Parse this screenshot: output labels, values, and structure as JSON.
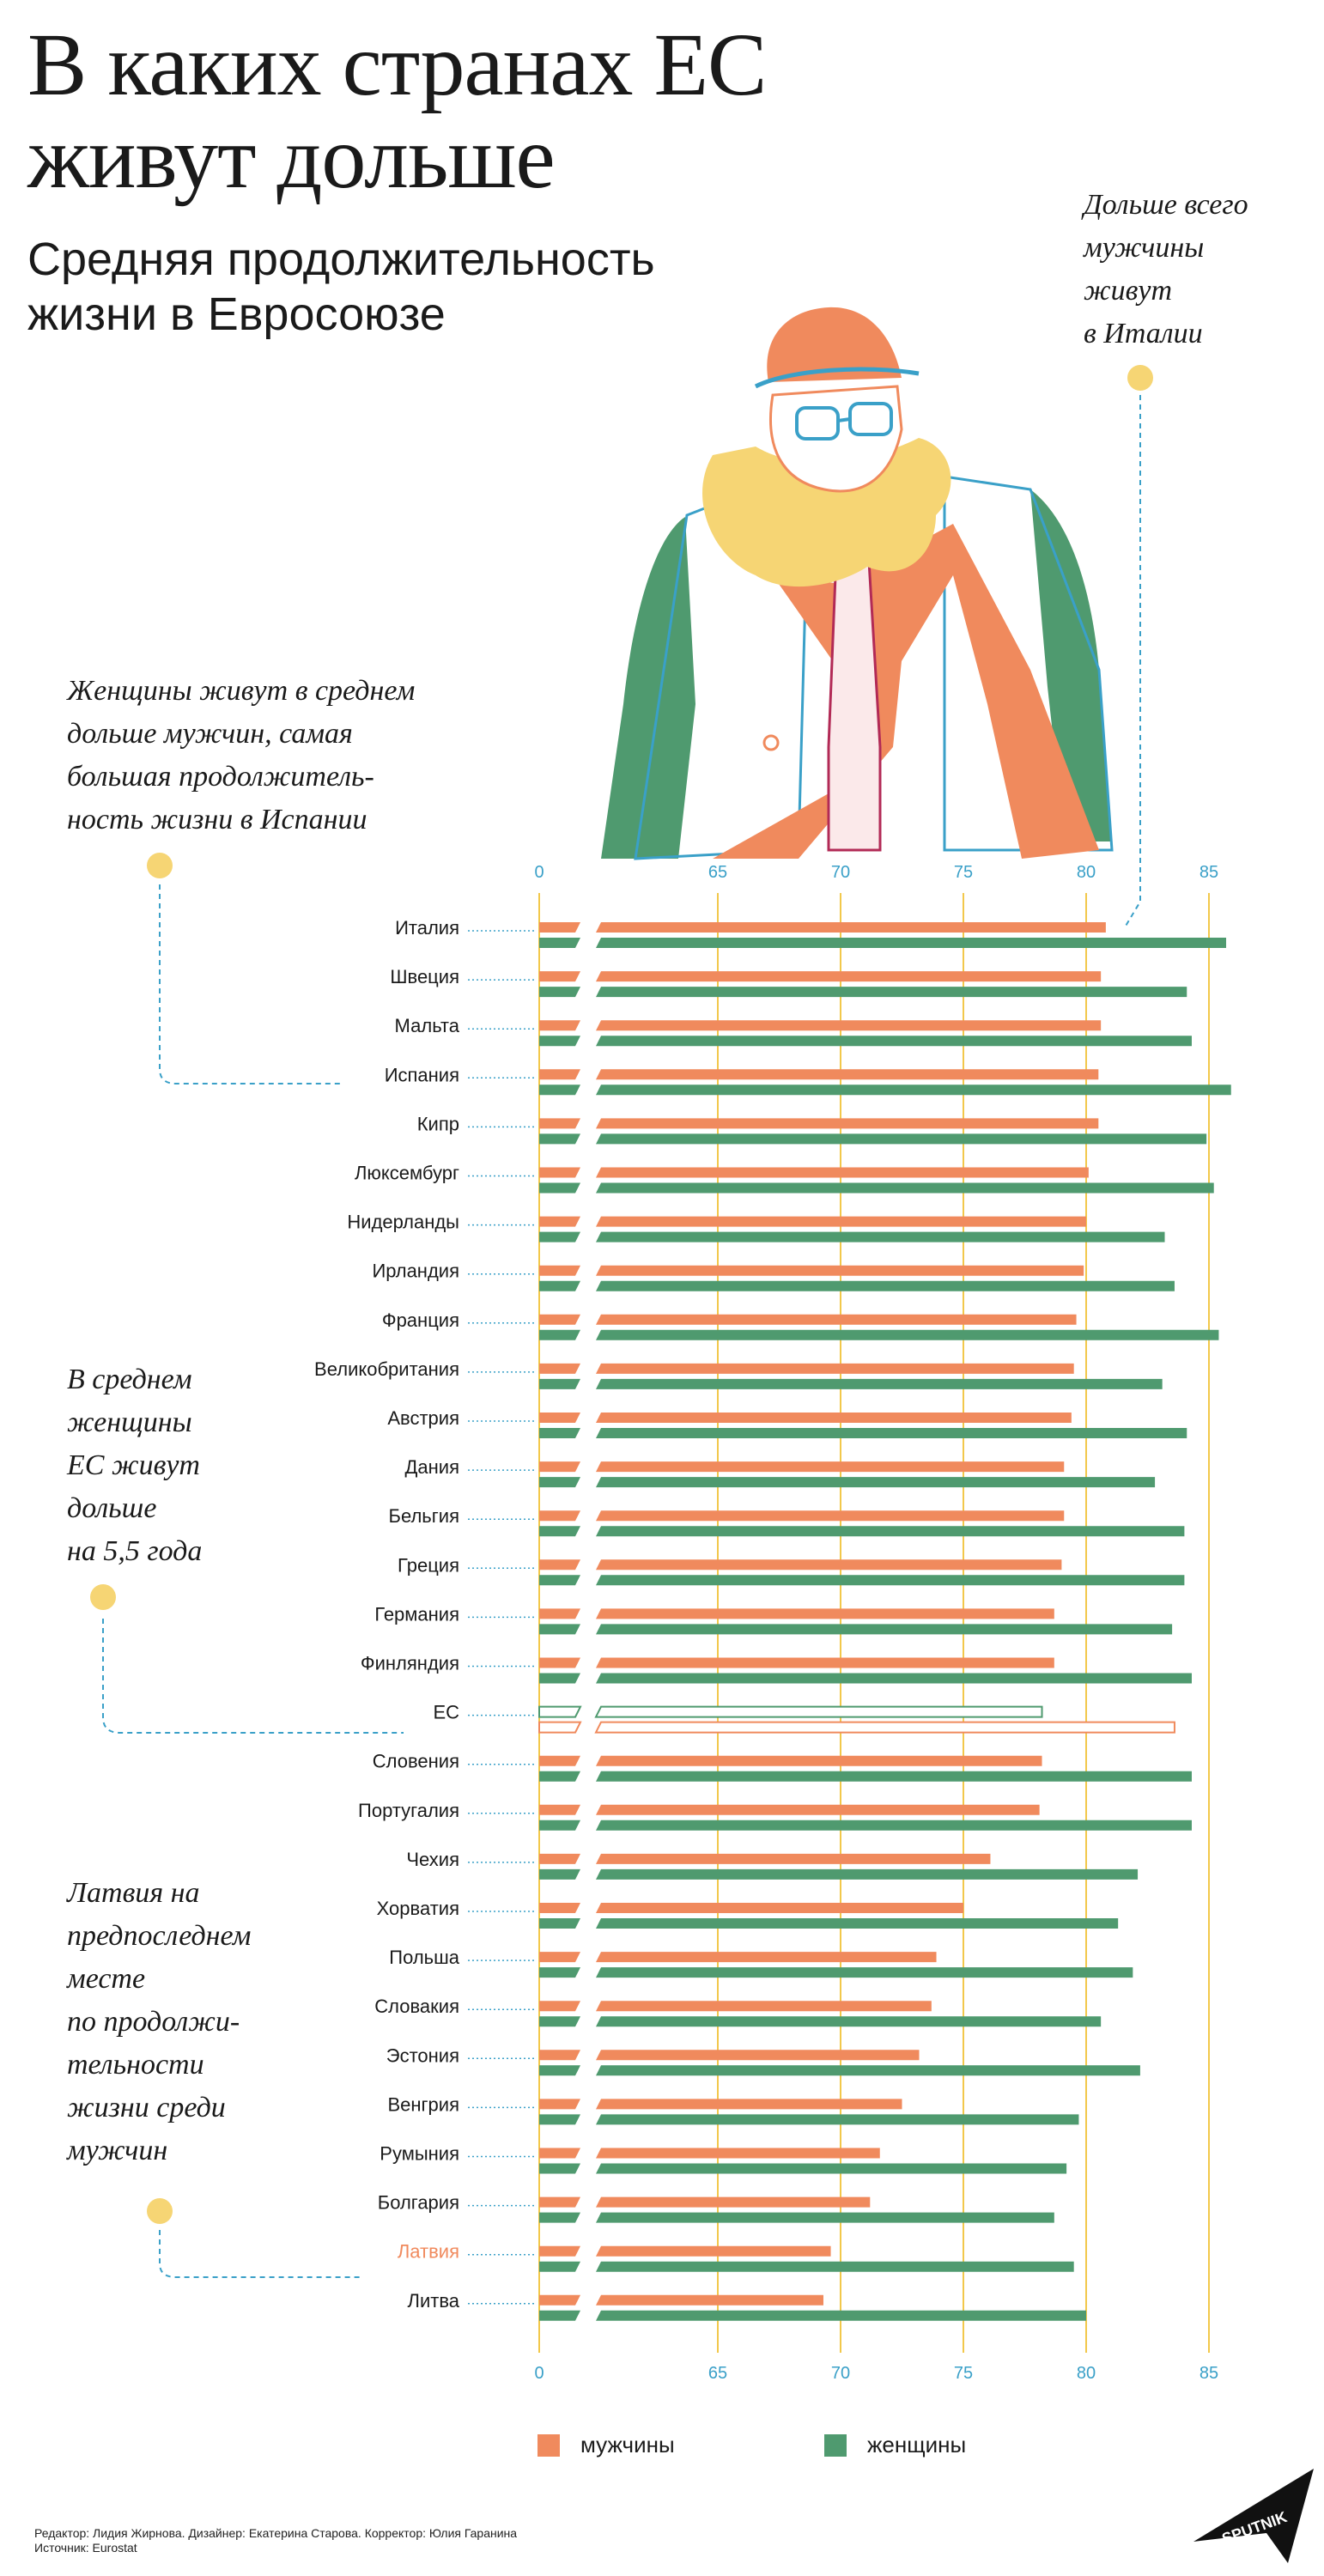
{
  "header": {
    "title_line1": "В каких странах ЕС",
    "title_line2": "живут дольше",
    "subtitle_line1": "Средняя продолжительность",
    "subtitle_line2": "жизни в Евросоюзе"
  },
  "notes": {
    "italy": [
      "Дольше всего",
      "мужчины",
      "живут",
      "в Италии"
    ],
    "spain": [
      "Женщины живут в среднем",
      "дольше мужчин, самая",
      "большая продолжитель-",
      "ность жизни в Испании"
    ],
    "eu": [
      "В среднем",
      "женщины",
      "ЕС живут",
      "дольше",
      "на 5,5 года"
    ],
    "latvia": [
      "Латвия на",
      "предпоследнем",
      "месте",
      "по продолжи-",
      "тельности",
      "жизни среди",
      "мужчин"
    ]
  },
  "legend": {
    "men": "мужчины",
    "women": "женщины"
  },
  "credits": {
    "line1": "Редактор: Лидия Жирнова. Дизайнер: Екатерина Старова. Корректор: Юлия Гаранина",
    "line2": "Источник: Eurostat"
  },
  "logo": {
    "text": "SPUTNIK"
  },
  "colors": {
    "men": "#f08a5d",
    "women": "#4f9a6f",
    "axis": "#3aa0c8",
    "grid": "#f2c84b",
    "highlight": "#f08a5d",
    "dot": "#f6d574"
  },
  "chart_data": {
    "type": "bar",
    "orientation": "horizontal",
    "axis_ticks": [
      "0",
      "65",
      "70",
      "75",
      "80",
      "85"
    ],
    "axis_break": [
      0,
      60
    ],
    "xlim": [
      60,
      87
    ],
    "categories": [
      "Италия",
      "Швеция",
      "Мальта",
      "Испания",
      "Кипр",
      "Люксембург",
      "Нидерланды",
      "Ирландия",
      "Франция",
      "Великобритания",
      "Австрия",
      "Дания",
      "Бельгия",
      "Греция",
      "Германия",
      "Финляндия",
      "ЕС",
      "Словения",
      "Португалия",
      "Чехия",
      "Хорватия",
      "Польша",
      "Словакия",
      "Эстония",
      "Венгрия",
      "Румыния",
      "Болгария",
      "Латвия",
      "Литва"
    ],
    "series": [
      {
        "name": "мужчины",
        "values": [
          80.8,
          80.6,
          80.6,
          80.5,
          80.5,
          80.1,
          80.0,
          79.9,
          79.6,
          79.5,
          79.4,
          79.1,
          79.1,
          79.0,
          78.7,
          78.7,
          78.2,
          78.2,
          78.1,
          76.1,
          75.0,
          73.9,
          73.7,
          73.2,
          72.5,
          71.6,
          71.2,
          69.6,
          69.3
        ]
      },
      {
        "name": "женщины",
        "values": [
          85.7,
          84.1,
          84.3,
          85.9,
          84.9,
          85.2,
          83.2,
          83.6,
          85.4,
          83.1,
          84.1,
          82.8,
          84.0,
          84.0,
          83.5,
          84.3,
          83.6,
          84.3,
          84.3,
          82.1,
          81.3,
          81.9,
          80.6,
          82.2,
          79.7,
          79.2,
          78.7,
          79.5,
          80.0
        ]
      }
    ],
    "highlight": [
      "ЕС",
      "Латвия"
    ]
  }
}
